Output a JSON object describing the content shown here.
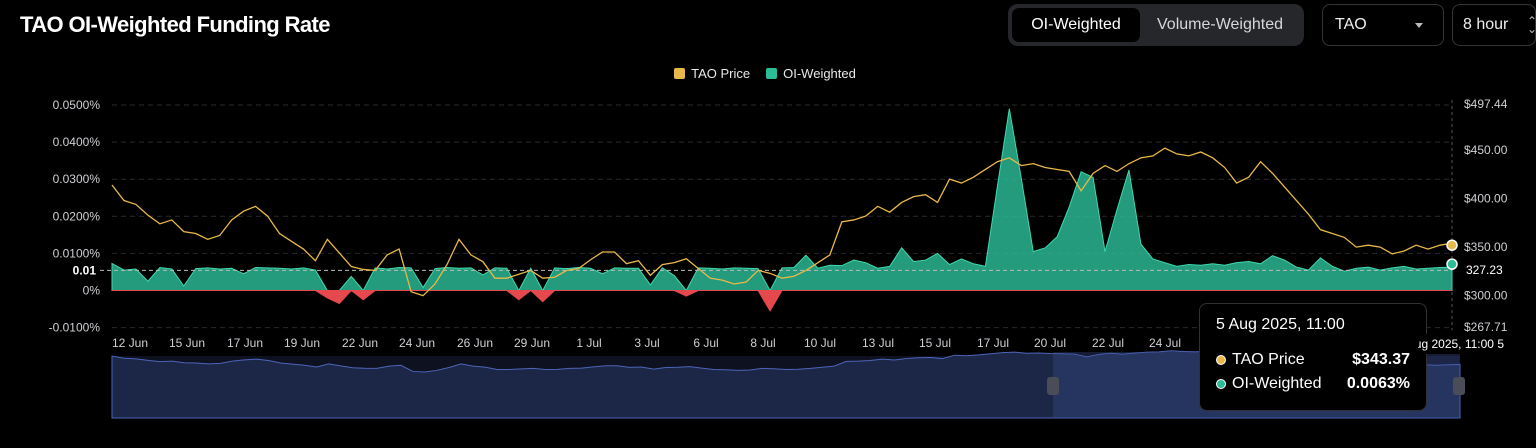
{
  "header": {
    "title": "TAO OI-Weighted Funding Rate",
    "toggle": [
      "OI-Weighted",
      "Volume-Weighted"
    ],
    "active_toggle": 0,
    "coin_select": "TAO",
    "interval_select": "8 hour"
  },
  "colors": {
    "price": "#e8b94a",
    "positive": "#2bbd97",
    "negative": "#e5484d",
    "grid": "#2a2a2e",
    "axis_text": "#cfcfd4"
  },
  "tooltip": {
    "title": "5 Aug 2025, 11:00",
    "rows": [
      {
        "name": "TAO Price",
        "value": "$343.37"
      },
      {
        "name": "OI-Weighted",
        "value": "0.0063%"
      }
    ]
  },
  "crosshair_label": "5 Aug 2025, 11:00",
  "left_marker_label": "0.01",
  "right_marker_label": "327.23",
  "chart_data": {
    "type": "line",
    "title": "TAO OI-Weighted Funding Rate",
    "legend_position": "top-center",
    "grid": true,
    "x_ticks": [
      "12 Jun",
      "15 Jun",
      "17 Jun",
      "19 Jun",
      "22 Jun",
      "24 Jun",
      "26 Jun",
      "29 Jun",
      "1 Jul",
      "3 Jul",
      "6 Jul",
      "8 Jul",
      "10 Jul",
      "13 Jul",
      "15 Jul",
      "17 Jul",
      "20 Jul",
      "22 Jul",
      "24 Jul"
    ],
    "y_left_ticks": [
      "0.0500%",
      "0.0400%",
      "0.0300%",
      "0.0200%",
      "0.0100%",
      "0%",
      "-0.0100%"
    ],
    "y_left_range": [
      -0.01,
      0.05
    ],
    "y_right_ticks": [
      "$497.44",
      "$450.00",
      "$400.00",
      "$350.00",
      "$300.00",
      "$267.71"
    ],
    "y_right_range": [
      267.71,
      497.44
    ],
    "series": [
      {
        "name": "TAO Price",
        "axis": "right",
        "values": [
          414,
          398,
          394,
          383,
          374,
          378,
          366,
          364,
          358,
          362,
          378,
          387,
          392,
          382,
          364,
          356,
          348,
          336,
          358,
          344,
          330,
          327,
          326,
          342,
          348,
          304,
          300,
          312,
          332,
          358,
          342,
          335,
          318,
          318,
          322,
          326,
          318,
          319,
          326,
          328,
          337,
          345,
          345,
          333,
          336,
          321,
          332,
          334,
          338,
          328,
          318,
          316,
          312,
          314,
          326,
          323,
          318,
          320,
          326,
          334,
          342,
          376,
          378,
          382,
          392,
          386,
          396,
          402,
          404,
          396,
          420,
          416,
          422,
          430,
          438,
          442,
          434,
          436,
          432,
          430,
          428,
          408,
          426,
          434,
          428,
          436,
          442,
          444,
          452,
          446,
          444,
          448,
          442,
          432,
          416,
          422,
          438,
          426,
          412,
          398,
          384,
          368,
          364,
          360,
          350,
          352,
          350,
          343,
          346,
          352,
          348,
          352,
          354
        ]
      },
      {
        "name": "OI-Weighted",
        "axis": "left",
        "unit": "%",
        "values": [
          0.0073,
          0.0055,
          0.0058,
          0.0025,
          0.0062,
          0.0058,
          0.0012,
          0.0059,
          0.0061,
          0.0058,
          0.006,
          0.0045,
          0.0062,
          0.0061,
          0.006,
          0.0058,
          0.0061,
          0.0055,
          -0.002,
          -0.0035,
          0.0038,
          -0.0025,
          0.0061,
          0.0058,
          0.0062,
          0.0061,
          0.0008,
          0.0059,
          0.0062,
          0.006,
          0.0061,
          0.0042,
          0.0061,
          0.006,
          -0.0025,
          0.006,
          -0.003,
          0.0061,
          0.0059,
          0.0062,
          0.006,
          0.0045,
          0.0061,
          0.006,
          0.006,
          0.0015,
          0.0061,
          0.004,
          -0.0015,
          0.0061,
          0.006,
          0.0058,
          0.0061,
          0.006,
          0.0059,
          -0.0055,
          0.0061,
          0.0062,
          0.0095,
          0.006,
          0.0068,
          0.0067,
          0.0082,
          0.0075,
          0.006,
          0.0065,
          0.0115,
          0.0078,
          0.0082,
          0.01,
          0.007,
          0.0085,
          0.0072,
          0.0065,
          0.028,
          0.049,
          0.0302,
          0.0105,
          0.0115,
          0.0145,
          0.0225,
          0.032,
          0.0305,
          0.0105,
          0.0218,
          0.0325,
          0.0125,
          0.0085,
          0.0075,
          0.0065,
          0.007,
          0.0068,
          0.0072,
          0.0068,
          0.0075,
          0.0078,
          0.0072,
          0.0094,
          0.0082,
          0.0063,
          0.0055,
          0.0088,
          0.0065,
          0.0052,
          0.006,
          0.0063,
          0.0055,
          0.0061,
          0.0065,
          0.0058,
          0.006,
          0.0062,
          0.0063
        ]
      }
    ]
  }
}
